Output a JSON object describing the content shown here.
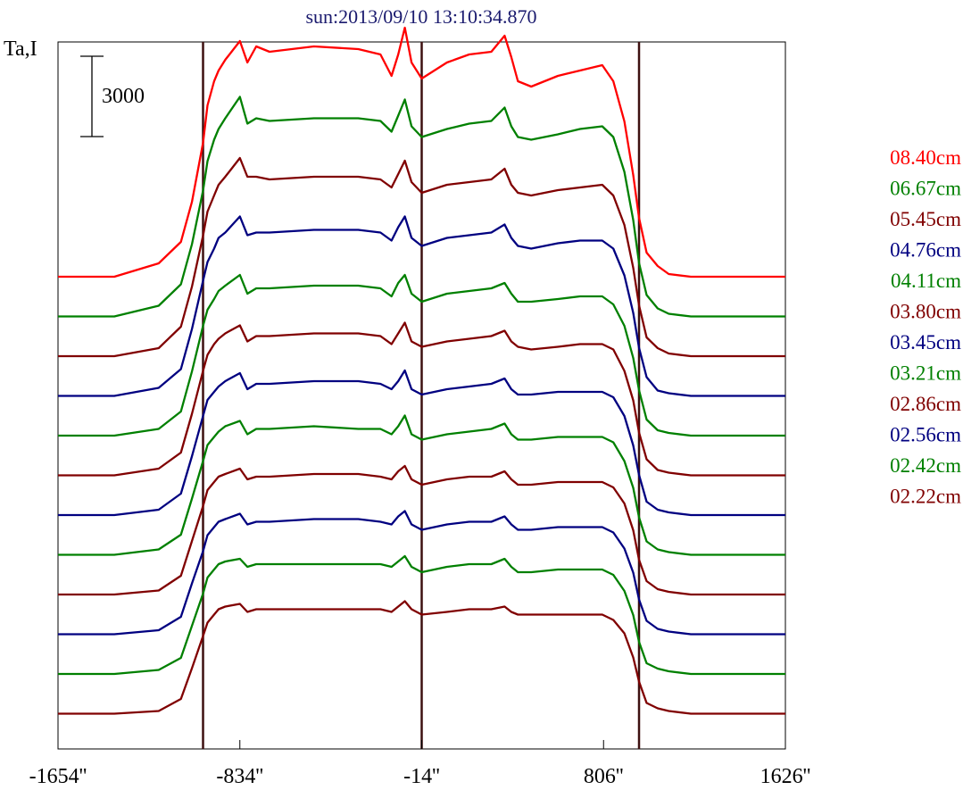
{
  "chart_data": {
    "type": "line",
    "title": "sun:2013/09/10 13:10:34.870",
    "ylabel": "Ta,I",
    "scale_bar_label": "3000",
    "x_tick_labels": [
      "-1654''",
      "-834''",
      "-14''",
      "806''",
      "1626''"
    ],
    "x_ticks": [
      -1654,
      -834,
      -14,
      806,
      1626
    ],
    "xlim": [
      -1654,
      1626
    ],
    "vertical_markers": [
      -1000,
      -14,
      966
    ],
    "x": [
      -1654,
      -1400,
      -1200,
      -1100,
      -1050,
      -1000,
      -980,
      -950,
      -930,
      -900,
      -834,
      -800,
      -760,
      -700,
      -500,
      -300,
      -200,
      -150,
      -120,
      -90,
      -60,
      -14,
      100,
      200,
      300,
      360,
      390,
      420,
      480,
      600,
      700,
      800,
      850,
      900,
      940,
      966,
      1000,
      1050,
      1100,
      1200,
      1400,
      1626
    ],
    "colors": [
      "#ff0000",
      "#008000",
      "#800000",
      "#000080",
      "#008000",
      "#800000",
      "#000080",
      "#008000",
      "#800000",
      "#000080",
      "#008000",
      "#800000"
    ],
    "series": [
      {
        "name": "08.40cm",
        "color": "#ff0000",
        "values": [
          0,
          0,
          500,
          1300,
          2800,
          5000,
          6400,
          7300,
          7700,
          8100,
          8800,
          8000,
          8600,
          8400,
          8600,
          8500,
          8300,
          7500,
          8300,
          9300,
          8000,
          7400,
          8000,
          8300,
          8400,
          9000,
          8200,
          7300,
          7100,
          7500,
          7700,
          7900,
          7300,
          5800,
          3800,
          2200,
          900,
          400,
          100,
          0,
          0,
          0
        ]
      },
      {
        "name": "06.67cm",
        "color": "#008000",
        "values": [
          0,
          0,
          400,
          1200,
          2700,
          4700,
          5800,
          6600,
          7000,
          7400,
          8200,
          7200,
          7400,
          7300,
          7400,
          7400,
          7300,
          6900,
          7500,
          8100,
          7100,
          6700,
          7000,
          7200,
          7300,
          7800,
          7100,
          6700,
          6600,
          6800,
          7000,
          7100,
          6700,
          5400,
          3600,
          2000,
          800,
          300,
          100,
          0,
          0,
          0
        ]
      },
      {
        "name": "05.45cm",
        "color": "#800000",
        "values": [
          0,
          0,
          300,
          1100,
          2600,
          4500,
          5400,
          6000,
          6400,
          6700,
          7400,
          6700,
          6700,
          6600,
          6700,
          6700,
          6600,
          6300,
          6800,
          7300,
          6500,
          6100,
          6400,
          6500,
          6600,
          7000,
          6400,
          6100,
          6000,
          6200,
          6300,
          6400,
          6000,
          4900,
          3300,
          1900,
          700,
          300,
          100,
          0,
          0,
          0
        ]
      },
      {
        "name": "04.76cm",
        "color": "#000080",
        "values": [
          0,
          0,
          300,
          1000,
          2500,
          4300,
          5000,
          5500,
          5900,
          6100,
          6700,
          6000,
          6100,
          6100,
          6200,
          6200,
          6100,
          5800,
          6300,
          6700,
          5900,
          5600,
          5900,
          6000,
          6100,
          6400,
          5900,
          5600,
          5500,
          5700,
          5800,
          5800,
          5500,
          4500,
          3100,
          1800,
          700,
          200,
          100,
          0,
          0,
          0
        ]
      },
      {
        "name": "04.11cm",
        "color": "#008000",
        "values": [
          0,
          0,
          250,
          900,
          2400,
          4100,
          4700,
          5100,
          5400,
          5600,
          6000,
          5300,
          5500,
          5500,
          5600,
          5600,
          5500,
          5200,
          5700,
          6000,
          5300,
          5000,
          5300,
          5400,
          5500,
          5700,
          5300,
          5000,
          5000,
          5100,
          5200,
          5200,
          4900,
          4100,
          2900,
          1700,
          600,
          200,
          100,
          0,
          0,
          0
        ]
      },
      {
        "name": "03.80cm",
        "color": "#800000",
        "values": [
          0,
          0,
          250,
          850,
          2300,
          3900,
          4500,
          4900,
          5100,
          5300,
          5600,
          5000,
          5200,
          5200,
          5300,
          5300,
          5200,
          4900,
          5300,
          5700,
          5000,
          4800,
          5000,
          5100,
          5200,
          5400,
          5000,
          4800,
          4700,
          4800,
          4900,
          4900,
          4700,
          3900,
          2800,
          1600,
          600,
          200,
          100,
          0,
          0,
          0
        ]
      },
      {
        "name": "03.45cm",
        "color": "#000080",
        "values": [
          0,
          0,
          200,
          800,
          2200,
          3700,
          4300,
          4600,
          4800,
          5000,
          5300,
          4700,
          4900,
          4900,
          5000,
          5000,
          4900,
          4700,
          5000,
          5400,
          4700,
          4500,
          4700,
          4800,
          4900,
          5100,
          4700,
          4500,
          4500,
          4600,
          4600,
          4600,
          4400,
          3700,
          2600,
          1500,
          500,
          200,
          100,
          0,
          0,
          0
        ]
      },
      {
        "name": "03.21cm",
        "color": "#008000",
        "values": [
          0,
          0,
          200,
          750,
          2100,
          3500,
          4100,
          4400,
          4600,
          4800,
          5000,
          4500,
          4700,
          4700,
          4800,
          4700,
          4700,
          4500,
          4800,
          5200,
          4500,
          4300,
          4500,
          4600,
          4700,
          4900,
          4500,
          4300,
          4300,
          4400,
          4400,
          4400,
          4200,
          3500,
          2500,
          1400,
          500,
          200,
          100,
          0,
          0,
          0
        ]
      },
      {
        "name": "02.86cm",
        "color": "#800000",
        "values": [
          0,
          0,
          150,
          700,
          2000,
          3300,
          3900,
          4200,
          4400,
          4500,
          4700,
          4300,
          4400,
          4400,
          4500,
          4500,
          4400,
          4300,
          4600,
          4800,
          4300,
          4100,
          4300,
          4400,
          4400,
          4600,
          4300,
          4100,
          4100,
          4200,
          4200,
          4200,
          4000,
          3400,
          2400,
          1300,
          500,
          200,
          100,
          0,
          0,
          0
        ]
      },
      {
        "name": "02.56cm",
        "color": "#000080",
        "values": [
          0,
          0,
          150,
          650,
          1900,
          3100,
          3700,
          4000,
          4200,
          4300,
          4500,
          4100,
          4200,
          4200,
          4300,
          4300,
          4200,
          4100,
          4400,
          4600,
          4100,
          3900,
          4100,
          4200,
          4200,
          4400,
          4100,
          3900,
          3900,
          4000,
          4000,
          4000,
          3800,
          3200,
          2300,
          1300,
          500,
          200,
          100,
          0,
          0,
          0
        ]
      },
      {
        "name": "02.42cm",
        "color": "#008000",
        "values": [
          0,
          0,
          150,
          600,
          1800,
          3000,
          3600,
          3900,
          4100,
          4200,
          4300,
          4000,
          4100,
          4100,
          4100,
          4100,
          4100,
          4000,
          4200,
          4400,
          4000,
          3800,
          4000,
          4100,
          4100,
          4300,
          4000,
          3800,
          3800,
          3900,
          3900,
          3900,
          3700,
          3100,
          2200,
          1200,
          400,
          200,
          100,
          0,
          0,
          0
        ]
      },
      {
        "name": "02.22cm",
        "color": "#800000",
        "values": [
          0,
          0,
          100,
          550,
          1700,
          2900,
          3400,
          3700,
          3900,
          4000,
          4100,
          3800,
          3900,
          3900,
          3900,
          3900,
          3900,
          3800,
          4000,
          4200,
          3900,
          3700,
          3800,
          3900,
          3900,
          4000,
          3800,
          3700,
          3700,
          3700,
          3700,
          3700,
          3500,
          3000,
          2100,
          1200,
          400,
          200,
          100,
          0,
          0,
          0
        ]
      }
    ]
  }
}
